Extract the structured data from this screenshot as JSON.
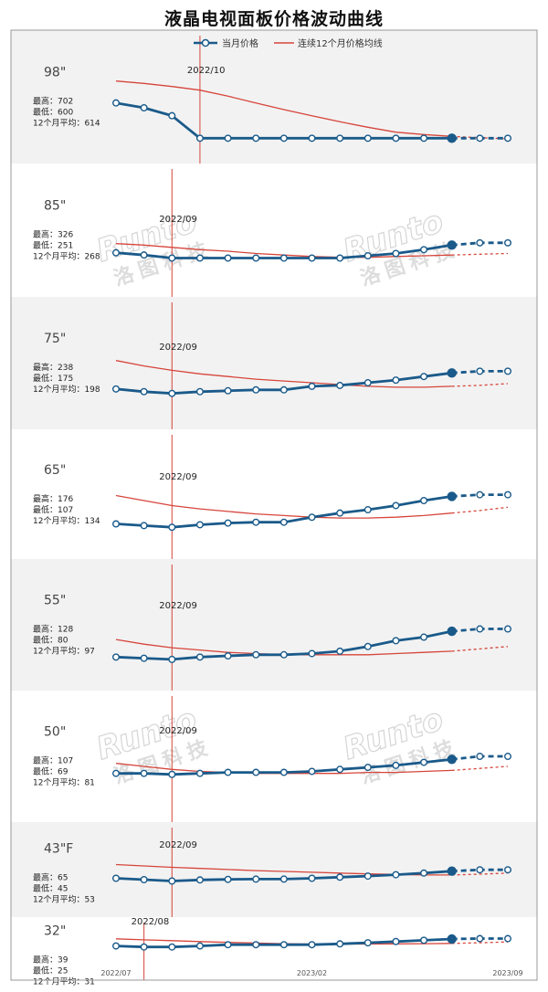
{
  "title": "液晶电视面板价格波动曲线",
  "legend": {
    "current": "当月价格",
    "ma12": "连续12个月价格均线",
    "current_color": "#1a5a8a",
    "ma12_color": "#d6453b"
  },
  "watermark": "Runto 洛图科技",
  "x_ticks": [
    "2022/07",
    "2023/02",
    "2023/09"
  ],
  "chart_data": [
    {
      "type": "line",
      "size_label": "98\"",
      "stats": [
        "最高：702",
        "最低：600",
        "12个月平均：614"
      ],
      "x": [
        "2022/07",
        "2022/08",
        "2022/09",
        "2022/10",
        "2022/11",
        "2022/12",
        "2023/01",
        "2023/02",
        "2023/03",
        "2023/04",
        "2023/05",
        "2023/06",
        "2023/07",
        "2023/08",
        "2023/09"
      ],
      "series": [
        {
          "name": "当月价格",
          "values": [
            681,
            673,
            660,
            623,
            623,
            623,
            623,
            623,
            623,
            623,
            623,
            623,
            623,
            623,
            623
          ]
        },
        {
          "name": "连续12个月价格均线",
          "values": [
            717,
            713,
            708,
            702,
            692,
            681,
            670,
            660,
            650,
            641,
            633,
            629,
            626,
            624,
            622
          ]
        }
      ],
      "marker_label": "2022/10",
      "marker_index": 3,
      "ylim": [
        610,
        745
      ],
      "forecast_from": 12
    },
    {
      "type": "line",
      "size_label": "85\"",
      "stats": [
        "最高：326",
        "最低：251",
        "12个月平均：268"
      ],
      "x": [
        "2022/07",
        "2022/08",
        "2022/09",
        "2022/10",
        "2022/11",
        "2022/12",
        "2023/01",
        "2023/02",
        "2023/03",
        "2023/04",
        "2023/05",
        "2023/06",
        "2023/07",
        "2023/08",
        "2023/09"
      ],
      "series": [
        {
          "name": "当月价格",
          "values": [
            260,
            257,
            253,
            253,
            253,
            253,
            253,
            253,
            253,
            256,
            259,
            264,
            270,
            273,
            273
          ]
        },
        {
          "name": "连续12个月价格均线",
          "values": [
            272,
            270,
            267,
            264,
            262,
            259,
            257,
            255,
            254,
            254,
            255,
            256,
            257,
            258,
            259
          ]
        }
      ],
      "marker_label": "2022/09",
      "marker_index": 2,
      "ylim": [
        232,
        298
      ],
      "forecast_from": 12
    },
    {
      "type": "line",
      "size_label": "75\"",
      "stats": [
        "最高：238",
        "最低：175",
        "12个月平均：198"
      ],
      "x": [
        "2022/07",
        "2022/08",
        "2022/09",
        "2022/10",
        "2022/11",
        "2022/12",
        "2023/01",
        "2023/02",
        "2023/03",
        "2023/04",
        "2023/05",
        "2023/06",
        "2023/07",
        "2023/08",
        "2023/09"
      ],
      "series": [
        {
          "name": "当月价格",
          "values": [
            180,
            177,
            175,
            177,
            178,
            179,
            179,
            183,
            184,
            187,
            190,
            194,
            198,
            200,
            200
          ]
        },
        {
          "name": "连续12个月价格均线",
          "values": [
            212,
            206,
            201,
            197,
            194,
            191,
            189,
            187,
            185,
            183,
            182,
            182,
            183,
            184,
            186
          ]
        }
      ],
      "marker_label": "2022/09",
      "marker_index": 2,
      "ylim": [
        150,
        222
      ],
      "forecast_from": 12
    },
    {
      "type": "line",
      "size_label": "65\"",
      "stats": [
        "最高：176",
        "最低：107",
        "12个月平均：134"
      ],
      "x": [
        "2022/07",
        "2022/08",
        "2022/09",
        "2022/10",
        "2022/11",
        "2022/12",
        "2023/01",
        "2023/02",
        "2023/03",
        "2023/04",
        "2023/05",
        "2023/06",
        "2023/07",
        "2023/08",
        "2023/09"
      ],
      "series": [
        {
          "name": "当月价格",
          "values": [
            111,
            109,
            107,
            110,
            112,
            113,
            113,
            119,
            124,
            128,
            133,
            139,
            144,
            146,
            146
          ]
        },
        {
          "name": "连续12个月价格均线",
          "values": [
            145,
            139,
            133,
            129,
            126,
            123,
            121,
            119,
            118,
            118,
            119,
            121,
            124,
            127,
            131
          ]
        }
      ],
      "marker_label": "2022/09",
      "marker_index": 2,
      "ylim": [
        82,
        162
      ],
      "forecast_from": 12
    },
    {
      "type": "line",
      "size_label": "55\"",
      "stats": [
        "最高：128",
        "最低：80",
        "12个月平均：97"
      ],
      "x": [
        "2022/07",
        "2022/08",
        "2022/09",
        "2022/10",
        "2022/11",
        "2022/12",
        "2023/01",
        "2023/02",
        "2023/03",
        "2023/04",
        "2023/05",
        "2023/06",
        "2023/07",
        "2023/08",
        "2023/09"
      ],
      "series": [
        {
          "name": "当月价格",
          "values": [
            82,
            81,
            80,
            82,
            83,
            84,
            84,
            85,
            87,
            91,
            96,
            99,
            104,
            106,
            106
          ]
        },
        {
          "name": "连续12个月价格均线",
          "values": [
            97,
            93,
            90,
            88,
            86,
            85,
            84,
            84,
            84,
            84,
            85,
            86,
            87,
            89,
            91
          ]
        }
      ],
      "marker_label": "2022/09",
      "marker_index": 2,
      "ylim": [
        62,
        122
      ],
      "forecast_from": 12
    },
    {
      "type": "line",
      "size_label": "50\"",
      "stats": [
        "最高：107",
        "最低：69",
        "12个月平均：81"
      ],
      "x": [
        "2022/07",
        "2022/08",
        "2022/09",
        "2022/10",
        "2022/11",
        "2022/12",
        "2023/01",
        "2023/02",
        "2023/03",
        "2023/04",
        "2023/05",
        "2023/06",
        "2023/07",
        "2023/08",
        "2023/09"
      ],
      "series": [
        {
          "name": "当月价格",
          "values": [
            70,
            70,
            69,
            70,
            71,
            71,
            71,
            72,
            74,
            76,
            78,
            81,
            84,
            87,
            87
          ]
        },
        {
          "name": "连续12个月价格均线",
          "values": [
            80,
            77,
            74,
            72,
            71,
            70,
            70,
            70,
            70,
            71,
            71,
            72,
            73,
            75,
            77
          ]
        }
      ],
      "marker_label": "2022/09",
      "marker_index": 2,
      "ylim": [
        56,
        108
      ],
      "forecast_from": 12
    },
    {
      "type": "line",
      "size_label": "43\"F",
      "stats": [
        "最高：65",
        "最低：45",
        "12个月平均：53"
      ],
      "x": [
        "2022/07",
        "2022/08",
        "2022/09",
        "2022/10",
        "2022/11",
        "2022/12",
        "2023/01",
        "2023/02",
        "2023/03",
        "2023/04",
        "2023/05",
        "2023/06",
        "2023/07",
        "2023/08",
        "2023/09"
      ],
      "series": [
        {
          "name": "当月价格",
          "values": [
            46,
            45.5,
            45,
            45.4,
            45.6,
            45.7,
            45.7,
            46,
            46.4,
            46.8,
            47.3,
            47.9,
            48.6,
            49.1,
            49.1
          ]
        },
        {
          "name": "连续12个月价格均线",
          "values": [
            51,
            50.5,
            50,
            49.6,
            49.2,
            48.8,
            48.5,
            48.2,
            47.9,
            47.6,
            47.4,
            47.2,
            47.2,
            47.5,
            47.9
          ]
        }
      ],
      "marker_label": "2022/09",
      "marker_index": 2,
      "ylim": [
        41.5,
        56.5
      ],
      "forecast_from": 12
    },
    {
      "type": "line",
      "size_label": "32\"",
      "stats": [
        "最高：39",
        "最低：25",
        "12个月平均：31"
      ],
      "x": [
        "2022/07",
        "2022/08",
        "2022/09",
        "2022/10",
        "2022/11",
        "2022/12",
        "2023/01",
        "2023/02",
        "2023/03",
        "2023/04",
        "2023/05",
        "2023/06",
        "2023/07",
        "2023/08",
        "2023/09"
      ],
      "series": [
        {
          "name": "当月价格",
          "values": [
            25.6,
            25.1,
            25.1,
            25.6,
            26.2,
            26.2,
            26.2,
            26.2,
            26.6,
            27.1,
            27.7,
            28.3,
            28.9,
            29.1,
            29.1
          ]
        },
        {
          "name": "连续12个月价格均线",
          "values": [
            29,
            28.5,
            28.1,
            27.7,
            27.3,
            27,
            26.7,
            26.5,
            26.5,
            26.5,
            26.6,
            26.7,
            26.8,
            27.1,
            27.5
          ]
        }
      ],
      "marker_label": "2022/08",
      "marker_index": 1,
      "ylim": [
        21.5,
        35
      ],
      "forecast_from": 12
    }
  ]
}
